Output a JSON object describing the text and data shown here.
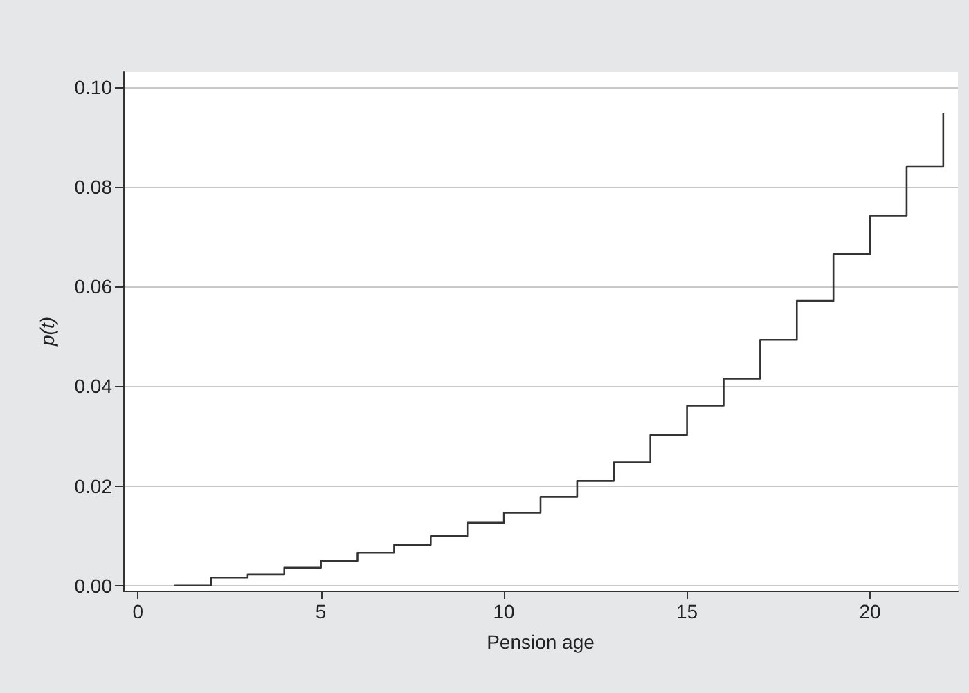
{
  "chart_data": {
    "type": "step",
    "xlabel": "Pension age",
    "ylabel": "p(t)",
    "x": [
      1,
      2,
      3,
      4,
      5,
      6,
      7,
      8,
      9,
      10,
      11,
      12,
      13,
      14,
      15,
      16,
      17,
      18,
      19,
      20,
      21,
      22
    ],
    "series": [
      {
        "color": "#333333",
        "values": [
          0,
          0.0016,
          0.0022,
          0.0036,
          0.005,
          0.0066,
          0.0082,
          0.0099,
          0.0126,
          0.0146,
          0.0178,
          0.021,
          0.0247,
          0.0302,
          0.0361,
          0.0415,
          0.0493,
          0.0571,
          0.0665,
          0.0741,
          0.084,
          0.0947
        ]
      }
    ],
    "xlim": [
      -0.4,
      22.4
    ],
    "xticks": [
      0,
      5,
      10,
      15,
      20
    ],
    "ylim": [
      -0.001,
      0.103
    ],
    "yticks": [
      {
        "value": 0,
        "label": "0.00"
      },
      {
        "value": 0.02,
        "label": "0.02"
      },
      {
        "value": 0.04,
        "label": "0.04"
      },
      {
        "value": 0.06,
        "label": "0.06"
      },
      {
        "value": 0.08,
        "label": "0.08"
      },
      {
        "value": 0.1,
        "label": "0.10"
      }
    ],
    "grid": "y",
    "marker": "none",
    "line_style": "solid"
  }
}
